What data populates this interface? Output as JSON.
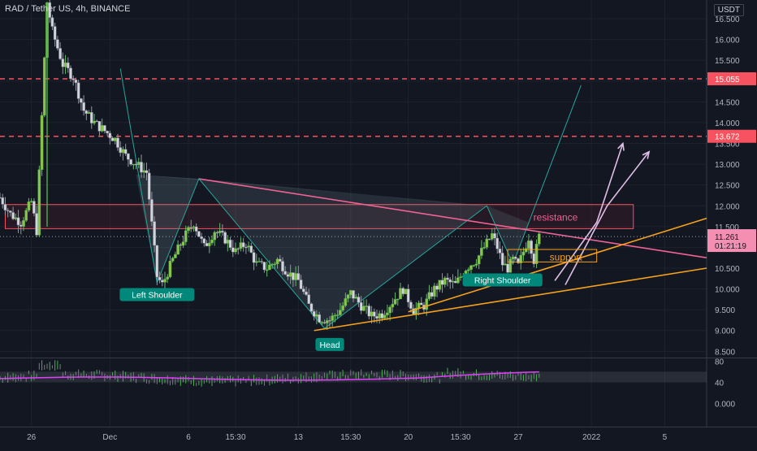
{
  "header": {
    "symbol": "RAD / Tether US, 4h, BINANCE",
    "currency": "USDT"
  },
  "chart_data": {
    "type": "candlestick",
    "price_axis": {
      "ticks": [
        8.5,
        9,
        9.5,
        10,
        10.5,
        11,
        11.5,
        12,
        12.5,
        13,
        13.5,
        14,
        14.5,
        15,
        15.5,
        16,
        16.5
      ],
      "tick_labels": [
        "8.500",
        "9.000",
        "9.500",
        "10.000",
        "10.500",
        "11.000",
        "11.500",
        "12.000",
        "12.500",
        "13.000",
        "13.500",
        "14.000",
        "14.500",
        "15.000",
        "15.500",
        "16.000",
        "16.500"
      ],
      "ylim": [
        8.35,
        16.95
      ]
    },
    "time_axis": {
      "labels": [
        {
          "label": "26",
          "t": 6
        },
        {
          "label": "Dec",
          "t": 21
        },
        {
          "label": "6",
          "t": 36
        },
        {
          "label": "15:30",
          "t": 45
        },
        {
          "label": "13",
          "t": 57
        },
        {
          "label": "15:30",
          "t": 67
        },
        {
          "label": "20",
          "t": 78
        },
        {
          "label": "15:30",
          "t": 88
        },
        {
          "label": "27",
          "t": 99
        },
        {
          "label": "2022",
          "t": 113
        },
        {
          "label": "5",
          "t": 127
        }
      ],
      "xlim": [
        0,
        135
      ]
    },
    "price_tags": [
      {
        "label": "15.055",
        "value": 15.055,
        "color": "#f7525f"
      },
      {
        "label": "13.672",
        "value": 13.672,
        "color": "#f7525f"
      },
      {
        "label": "11.261",
        "sublabel": "01:21:19",
        "value": 11.261,
        "color": "#f48fb1"
      }
    ],
    "candles_keypoints": [
      [
        0,
        12.2
      ],
      [
        2,
        11.8
      ],
      [
        4,
        11.6
      ],
      [
        6,
        12.1
      ],
      [
        7,
        11.4
      ],
      [
        9,
        16.9
      ],
      [
        10,
        16.2
      ],
      [
        12,
        15.4
      ],
      [
        14,
        15.1
      ],
      [
        16,
        14.3
      ],
      [
        18,
        14.0
      ],
      [
        20,
        13.8
      ],
      [
        22,
        13.6
      ],
      [
        24,
        13.2
      ],
      [
        26,
        13.0
      ],
      [
        28,
        12.8
      ],
      [
        30,
        10.3
      ],
      [
        31,
        10.1
      ],
      [
        33,
        10.7
      ],
      [
        35,
        11.2
      ],
      [
        37,
        11.6
      ],
      [
        39,
        11.0
      ],
      [
        41,
        11.4
      ],
      [
        43,
        11.2
      ],
      [
        45,
        10.9
      ],
      [
        47,
        11.1
      ],
      [
        49,
        10.6
      ],
      [
        51,
        10.5
      ],
      [
        53,
        10.7
      ],
      [
        55,
        10.4
      ],
      [
        57,
        10.2
      ],
      [
        59,
        9.6
      ],
      [
        61,
        9.3
      ],
      [
        63,
        9.25
      ],
      [
        65,
        9.5
      ],
      [
        67,
        9.9
      ],
      [
        69,
        9.6
      ],
      [
        71,
        9.35
      ],
      [
        73,
        9.4
      ],
      [
        75,
        9.7
      ],
      [
        77,
        10.0
      ],
      [
        79,
        9.5
      ],
      [
        81,
        9.6
      ],
      [
        83,
        10.0
      ],
      [
        85,
        10.2
      ],
      [
        87,
        10.1
      ],
      [
        89,
        10.5
      ],
      [
        91,
        10.7
      ],
      [
        93,
        11.1
      ],
      [
        94,
        11.3
      ],
      [
        95,
        11.0
      ],
      [
        96,
        10.6
      ],
      [
        97,
        10.5
      ],
      [
        98,
        10.7
      ],
      [
        99,
        10.55
      ],
      [
        100,
        10.9
      ],
      [
        101,
        11.25
      ],
      [
        102,
        10.7
      ],
      [
        103,
        11.26
      ]
    ],
    "lines": [
      {
        "name": "neckline",
        "color": "#f06292",
        "points": [
          [
            38,
            12.65
          ],
          [
            135,
            10.75
          ]
        ]
      },
      {
        "name": "trend-upper",
        "color": "#f7a21b",
        "points": [
          [
            78,
            9.45
          ],
          [
            135,
            11.7
          ]
        ]
      },
      {
        "name": "trend-lower",
        "color": "#f7a21b",
        "points": [
          [
            60,
            9.0
          ],
          [
            135,
            10.5
          ]
        ]
      },
      {
        "name": "resistance-upper",
        "color": "#f7525f",
        "points": [
          [
            1,
            12.03
          ],
          [
            121,
            12.03
          ]
        ],
        "dashed": false
      },
      {
        "name": "resistance-lower",
        "color": "#f7525f",
        "points": [
          [
            1,
            11.45
          ],
          [
            121,
            11.45
          ]
        ],
        "dashed": false
      },
      {
        "name": "mid-line",
        "color": "#a0a4ad",
        "points": [
          [
            0,
            11.26
          ],
          [
            135,
            11.26
          ]
        ],
        "dotted": true
      }
    ],
    "hs_pattern": {
      "points": [
        [
          23,
          15.3
        ],
        [
          30,
          10.15
        ],
        [
          38,
          12.65
        ],
        [
          62,
          9.05
        ],
        [
          93,
          12.0
        ],
        [
          98,
          10.6
        ],
        [
          111,
          14.9
        ]
      ]
    },
    "projection_arrows": [
      {
        "points": [
          [
            106,
            10.2
          ],
          [
            114,
            11.6
          ],
          [
            119,
            13.5
          ]
        ]
      },
      {
        "points": [
          [
            108,
            10.1
          ],
          [
            116,
            12.0
          ],
          [
            124,
            13.3
          ]
        ]
      }
    ],
    "annotations": [
      {
        "text": "Left Shoulder",
        "t": 30,
        "value": 10.1,
        "style": "teal-box"
      },
      {
        "text": "Head",
        "t": 63,
        "value": 8.9,
        "style": "teal-box"
      },
      {
        "text": "Right Shoulder",
        "t": 96,
        "value": 10.45,
        "style": "teal-box"
      },
      {
        "text": "resistance",
        "t": 105,
        "value": 11.72,
        "style": "pink-text"
      },
      {
        "text": "support",
        "t": 105,
        "value": 10.76,
        "style": "orange-box"
      }
    ],
    "rsi": {
      "ticks": [
        0,
        40,
        80
      ],
      "tick_labels": [
        "0.000",
        "40",
        "80"
      ],
      "band": [
        40,
        60
      ],
      "ylim": [
        -5,
        85
      ]
    }
  }
}
